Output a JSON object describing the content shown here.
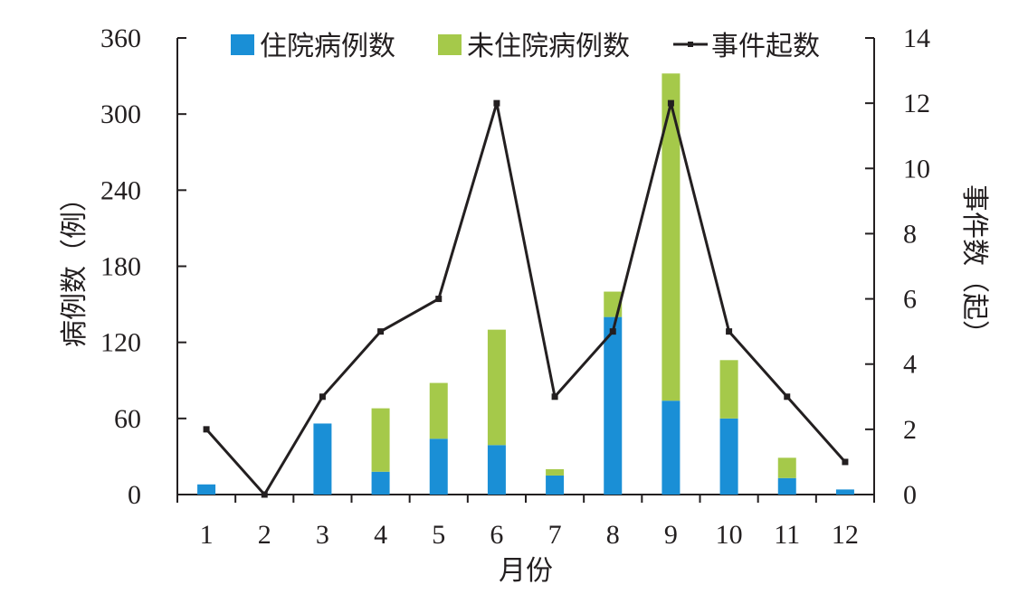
{
  "chart_data": {
    "type": "bar",
    "xlabel": "月份",
    "ylabel_left": "病例数（例）",
    "ylabel_right": "事件数（起）",
    "categories": [
      "1",
      "2",
      "3",
      "4",
      "5",
      "6",
      "7",
      "8",
      "9",
      "10",
      "11",
      "12"
    ],
    "ylim_left": [
      0,
      360
    ],
    "ylim_right": [
      0,
      14
    ],
    "yticks_left": [
      "0",
      "60",
      "120",
      "180",
      "240",
      "300",
      "360"
    ],
    "yticks_right": [
      "0",
      "2",
      "4",
      "6",
      "8",
      "10",
      "12",
      "14"
    ],
    "grid": false,
    "legend_position": "top",
    "series": [
      {
        "name": "住院病例数",
        "type": "bar",
        "stack": "cases",
        "axis": "left",
        "color": "#1a8fd6",
        "values": [
          8,
          0,
          56,
          18,
          44,
          39,
          15,
          140,
          74,
          60,
          13,
          4
        ]
      },
      {
        "name": "未住院病例数",
        "type": "bar",
        "stack": "cases",
        "axis": "left",
        "color": "#a5c94a",
        "values": [
          0,
          0,
          0,
          50,
          44,
          91,
          5,
          20,
          258,
          46,
          16,
          0
        ]
      },
      {
        "name": "事件起数",
        "type": "line",
        "axis": "right",
        "color": "#231f20",
        "values": [
          2,
          0,
          3,
          5,
          6,
          12,
          3,
          5,
          12,
          5,
          3,
          1
        ]
      }
    ]
  }
}
